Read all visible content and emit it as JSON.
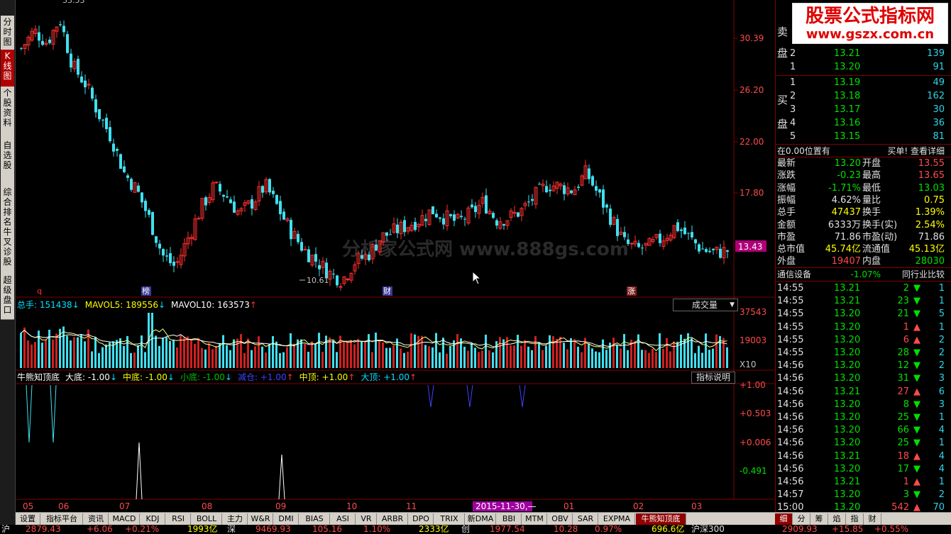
{
  "left_tabs": [
    {
      "label": "分时图",
      "active": false
    },
    {
      "label": "K线图",
      "active": true
    },
    {
      "label": "个股资料",
      "active": false
    },
    {
      "label": "自选股",
      "active": false
    },
    {
      "label": "综合排名",
      "active": false
    },
    {
      "label": "牛叉诊股",
      "active": false
    },
    {
      "label": "超级盘口",
      "active": false
    }
  ],
  "kline": {
    "price_ticks": [
      "30.39",
      "26.20",
      "22.00",
      "17.80"
    ],
    "current_price_box": "13.43",
    "low_label": "10.61",
    "top_partial": "33.53",
    "markers": [
      {
        "text": "q",
        "color": "#ff3030"
      },
      {
        "text": "榜",
        "color": "#ffffff"
      },
      {
        "text": "财",
        "color": "#ffffff"
      },
      {
        "text": "涨",
        "color": "#ffffff"
      }
    ],
    "watermark": "分析家公式网  www.888gs.com",
    "chart_data": {
      "type": "candlestick",
      "ylim": [
        10.0,
        34.0
      ],
      "ohlc_close_approx": [
        30.5,
        32.0,
        31.0,
        33.0,
        29.0,
        27.5,
        25.0,
        23.0,
        20.0,
        18.5,
        16.0,
        13.0,
        12.0,
        14.5,
        17.0,
        18.8,
        18.0,
        16.5,
        17.5,
        18.9,
        17.0,
        15.0,
        13.5,
        12.5,
        11.5,
        10.9,
        12.5,
        13.0,
        14.5,
        15.0,
        15.5,
        16.0,
        16.8,
        16.2,
        15.8,
        16.5,
        17.5,
        16.0,
        16.2,
        16.8,
        18.0,
        19.0,
        18.8,
        18.5,
        20.0,
        18.0,
        16.0,
        14.0,
        13.5,
        13.8,
        14.5,
        15.5,
        14.5,
        13.5,
        13.2,
        13.4
      ]
    }
  },
  "volume": {
    "legend": [
      {
        "label": "总手: 151438",
        "arrow": "↓",
        "color": "#00e0ff",
        "arrow_color": "#00e0ff"
      },
      {
        "label": "MAVOL5: 189556",
        "arrow": "↓",
        "color": "#ffff00",
        "arrow_color": "#00e0ff"
      },
      {
        "label": "MAVOL10: 163573",
        "arrow": "↑",
        "color": "#ffffff",
        "arrow_color": "#ff3030"
      }
    ],
    "selector": "成交量",
    "ticks": [
      "37543",
      "19003",
      "X10"
    ]
  },
  "indicator": {
    "legend": [
      {
        "label": "牛熊知顶底",
        "arrow": "",
        "color": "#ffffff"
      },
      {
        "label": "大底: -1.00",
        "arrow": "↓",
        "color": "#ffffff"
      },
      {
        "label": "中底: -1.00",
        "arrow": "↓",
        "color": "#ffff00"
      },
      {
        "label": "小底: -1.00",
        "arrow": "↓",
        "color": "#00c000"
      },
      {
        "label": "减仓: +1.00",
        "arrow": "↑",
        "color": "#4040ff"
      },
      {
        "label": "中顶: +1.00",
        "arrow": "↑",
        "color": "#ffff00"
      },
      {
        "label": "大顶: +1.00",
        "arrow": "↑",
        "color": "#00e0ff"
      }
    ],
    "help_button": "指标说明",
    "ticks": [
      "+1.00",
      "+0.503",
      "+0.006",
      "-0.491"
    ]
  },
  "x_axis": {
    "labels": [
      "05",
      "06",
      "07",
      "08",
      "09",
      "10",
      "11",
      "2015-11-30,—",
      "01",
      "02",
      "03"
    ]
  },
  "bottom_tabs": [
    "设置",
    "指标平台",
    "资讯",
    "MACD",
    "KDJ",
    "RSI",
    "BOLL",
    "主力",
    "W&R",
    "DMI",
    "BIAS",
    "ASI",
    "VR",
    "ARBR",
    "DPO",
    "TRIX",
    "新DMA",
    "BBI",
    "MTM",
    "OBV",
    "SAR",
    "EXPMA",
    "牛熊知顶底"
  ],
  "right_tabs": [
    "细",
    "分",
    "筹",
    "焰",
    "指",
    "财"
  ],
  "logo": {
    "title": "股票公式指标网",
    "url": "www.gszx.com.cn"
  },
  "order_book": {
    "sell_label": [
      "卖",
      "盘"
    ],
    "buy_label": [
      "买",
      "盘"
    ],
    "sell": [
      {
        "level": "2",
        "price": "13.21",
        "volume": "139"
      },
      {
        "level": "1",
        "price": "13.20",
        "volume": "91"
      }
    ],
    "buy": [
      {
        "level": "1",
        "price": "13.19",
        "volume": "49"
      },
      {
        "level": "2",
        "price": "13.18",
        "volume": "162"
      },
      {
        "level": "3",
        "price": "13.17",
        "volume": "30"
      },
      {
        "level": "4",
        "price": "13.16",
        "volume": "36"
      },
      {
        "level": "5",
        "price": "13.15",
        "volume": "81"
      }
    ],
    "position_text": "在0.00位置有",
    "buy_detail": "买单! 查看详细"
  },
  "quote": [
    {
      "l1": "最新",
      "v1": "13.20",
      "c1": "green",
      "l2": "开盘",
      "v2": "13.55",
      "c2": "red"
    },
    {
      "l1": "涨跌",
      "v1": "-0.23",
      "c1": "green",
      "l2": "最高",
      "v2": "13.65",
      "c2": "red"
    },
    {
      "l1": "涨幅",
      "v1": "-1.71%",
      "c1": "green",
      "l2": "最低",
      "v2": "13.03",
      "c2": "green"
    },
    {
      "l1": "振幅",
      "v1": "4.62%",
      "c1": "white",
      "l2": "量比",
      "v2": "0.75",
      "c2": "yellow"
    },
    {
      "l1": "总手",
      "v1": "47437",
      "c1": "yellow",
      "l2": "换手",
      "v2": "1.39%",
      "c2": "yellow"
    },
    {
      "l1": "金额",
      "v1": "6333万",
      "c1": "white",
      "l2": "换手(实)",
      "v2": "2.54%",
      "c2": "yellow"
    },
    {
      "l1": "市盈",
      "v1": "71.86",
      "c1": "white",
      "l2": "市盈(动)",
      "v2": "71.86",
      "c2": "white"
    },
    {
      "l1": "总市值",
      "v1": "45.74亿",
      "c1": "yellow",
      "l2": "流通值",
      "v2": "45.13亿",
      "c2": "yellow"
    },
    {
      "l1": "外盘",
      "v1": "19407",
      "c1": "red",
      "l2": "内盘",
      "v2": "28030",
      "c2": "green"
    }
  ],
  "industry": {
    "name": "通信设备",
    "change": "-1.07%",
    "compare": "同行业比较"
  },
  "ticks": [
    {
      "time": "14:55",
      "price": "13.21",
      "vol": "2",
      "dir": "down",
      "n": "1"
    },
    {
      "time": "14:55",
      "price": "13.21",
      "vol": "23",
      "dir": "down",
      "n": "1"
    },
    {
      "time": "14:55",
      "price": "13.20",
      "vol": "21",
      "dir": "down",
      "n": "5"
    },
    {
      "time": "14:55",
      "price": "13.20",
      "vol": "1",
      "dir": "up",
      "n": "1"
    },
    {
      "time": "14:55",
      "price": "13.20",
      "vol": "6",
      "dir": "up",
      "n": "2"
    },
    {
      "time": "14:55",
      "price": "13.20",
      "vol": "28",
      "dir": "down",
      "n": "2"
    },
    {
      "time": "14:56",
      "price": "13.20",
      "vol": "12",
      "dir": "down",
      "n": "2"
    },
    {
      "time": "14:56",
      "price": "13.20",
      "vol": "31",
      "dir": "down",
      "n": "3"
    },
    {
      "time": "14:56",
      "price": "13.21",
      "vol": "27",
      "dir": "up",
      "n": "6"
    },
    {
      "time": "14:56",
      "price": "13.20",
      "vol": "8",
      "dir": "down",
      "n": "3"
    },
    {
      "time": "14:56",
      "price": "13.20",
      "vol": "25",
      "dir": "down",
      "n": "1"
    },
    {
      "time": "14:56",
      "price": "13.20",
      "vol": "66",
      "dir": "down",
      "n": "4"
    },
    {
      "time": "14:56",
      "price": "13.20",
      "vol": "25",
      "dir": "down",
      "n": "1"
    },
    {
      "time": "14:56",
      "price": "13.21",
      "vol": "18",
      "dir": "up",
      "n": "4"
    },
    {
      "time": "14:56",
      "price": "13.20",
      "vol": "17",
      "dir": "down",
      "n": "4"
    },
    {
      "time": "14:56",
      "price": "13.21",
      "vol": "1",
      "dir": "up",
      "n": "1"
    },
    {
      "time": "14:57",
      "price": "13.20",
      "vol": "3",
      "dir": "down",
      "n": "2"
    },
    {
      "time": "15:00",
      "price": "13.20",
      "vol": "542",
      "dir": "up",
      "n": "70"
    }
  ],
  "statusbar": [
    {
      "text": "沪",
      "color": "#e0e0e0"
    },
    {
      "text": "2879.43",
      "color": "#ff4a4a"
    },
    {
      "text": "+6.06",
      "color": "#ff4a4a"
    },
    {
      "text": "+0.21%",
      "color": "#ff4a4a"
    },
    {
      "text": "1993亿",
      "color": "#ffff00"
    },
    {
      "text": "深",
      "color": "#e0e0e0"
    },
    {
      "text": "9469.93",
      "color": "#ff4a4a"
    },
    {
      "text": "105.16",
      "color": "#ff4a4a"
    },
    {
      "text": "1.10%",
      "color": "#ff4a4a"
    },
    {
      "text": "2333亿",
      "color": "#ffff00"
    },
    {
      "text": "创",
      "color": "#e0e0e0"
    },
    {
      "text": "1977.54",
      "color": "#ff4a4a"
    },
    {
      "text": "10.28",
      "color": "#ff4a4a"
    },
    {
      "text": "0.97%",
      "color": "#ff4a4a"
    },
    {
      "text": "696.6亿",
      "color": "#ffff00"
    },
    {
      "text": "沪深300",
      "color": "#e0e0e0"
    }
  ],
  "right_status": [
    {
      "text": "2909.93",
      "color": "#ff4a4a"
    },
    {
      "text": "+15.85",
      "color": "#ff4a4a"
    },
    {
      "text": "+0.55%",
      "color": "#ff4a4a"
    }
  ]
}
